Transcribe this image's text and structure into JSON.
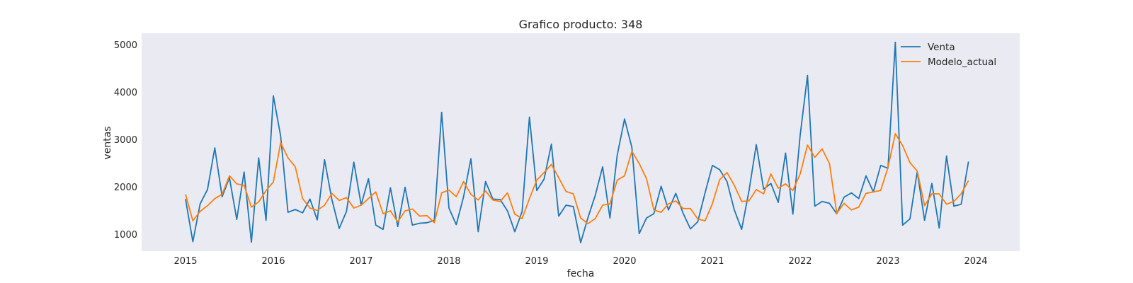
{
  "chart_data": {
    "type": "line",
    "title": "Grafico producto: 348",
    "xlabel": "fecha",
    "ylabel": "ventas",
    "x_start": "2015-01",
    "x_frequency": "monthly",
    "xlim": [
      "2014-07",
      "2024-07"
    ],
    "ylim": [
      650,
      5250
    ],
    "x_ticks": [
      "2015",
      "2016",
      "2017",
      "2018",
      "2019",
      "2020",
      "2021",
      "2022",
      "2023",
      "2024"
    ],
    "y_ticks": [
      1000,
      2000,
      3000,
      4000,
      5000
    ],
    "grid": false,
    "legend": "top-right",
    "background": "#eaeaf2",
    "series": [
      {
        "name": "Venta",
        "color": "#1f77b4",
        "values": [
          1750,
          850,
          1650,
          1950,
          2830,
          1800,
          2200,
          1320,
          2320,
          840,
          2620,
          1300,
          3930,
          3080,
          1470,
          1530,
          1460,
          1750,
          1310,
          2580,
          1740,
          1130,
          1490,
          2530,
          1630,
          2180,
          1200,
          1110,
          1990,
          1170,
          2000,
          1200,
          1240,
          1250,
          1300,
          3580,
          1560,
          1210,
          1800,
          2600,
          1060,
          2120,
          1750,
          1740,
          1500,
          1060,
          1490,
          3480,
          1930,
          2170,
          2910,
          1390,
          1620,
          1590,
          830,
          1360,
          1830,
          2430,
          1350,
          2680,
          3440,
          2840,
          1020,
          1350,
          1440,
          2020,
          1520,
          1870,
          1450,
          1120,
          1270,
          1880,
          2460,
          2370,
          2120,
          1520,
          1110,
          1920,
          2900,
          1960,
          2080,
          1680,
          2720,
          1430,
          3100,
          4360,
          1600,
          1700,
          1660,
          1440,
          1790,
          1880,
          1760,
          2240,
          1900,
          2460,
          2400,
          5060,
          1200,
          1330,
          2330,
          1300,
          2080,
          1140,
          2660,
          1600,
          1640,
          2540
        ]
      },
      {
        "name": "Modelo_actual",
        "color": "#ff7f0e",
        "values": [
          1850,
          1290,
          1490,
          1610,
          1760,
          1850,
          2240,
          2070,
          2040,
          1580,
          1690,
          1930,
          2110,
          2940,
          2620,
          2430,
          1760,
          1560,
          1510,
          1620,
          1870,
          1720,
          1780,
          1560,
          1620,
          1760,
          1900,
          1440,
          1500,
          1270,
          1500,
          1540,
          1390,
          1400,
          1250,
          1880,
          1940,
          1800,
          2120,
          1850,
          1730,
          1920,
          1730,
          1700,
          1880,
          1430,
          1340,
          1760,
          2150,
          2310,
          2480,
          2200,
          1910,
          1860,
          1350,
          1230,
          1340,
          1620,
          1650,
          2150,
          2240,
          2760,
          2500,
          2180,
          1520,
          1470,
          1650,
          1710,
          1550,
          1550,
          1330,
          1290,
          1650,
          2160,
          2310,
          2040,
          1700,
          1710,
          1950,
          1860,
          2280,
          1980,
          2070,
          1930,
          2280,
          2890,
          2630,
          2810,
          2500,
          1450,
          1660,
          1520,
          1580,
          1870,
          1900,
          1930,
          2420,
          3130,
          2880,
          2520,
          2340,
          1610,
          1860,
          1860,
          1640,
          1700,
          1860,
          2140
        ]
      }
    ]
  }
}
